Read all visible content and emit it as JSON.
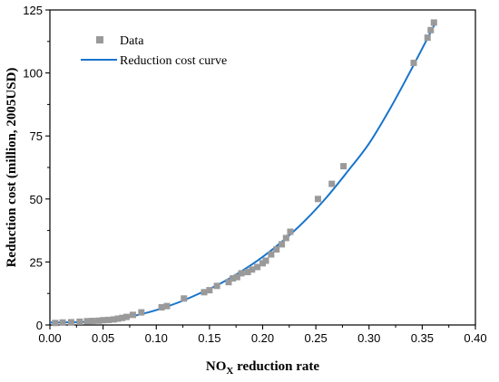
{
  "chart_data": {
    "type": "scatter",
    "title": "",
    "xlabel_main": "NO",
    "xlabel_sub": "X",
    "xlabel_rest": " reduction rate",
    "ylabel": "Reduction cost (million, 2005USD)",
    "xlim": [
      0.0,
      0.4
    ],
    "ylim": [
      0,
      125
    ],
    "xticks": [
      0.0,
      0.05,
      0.1,
      0.15,
      0.2,
      0.25,
      0.3,
      0.35,
      0.4
    ],
    "xtick_labels": [
      "0.00",
      "0.05",
      "0.10",
      "0.15",
      "0.20",
      "0.25",
      "0.30",
      "0.35",
      "0.40"
    ],
    "yticks": [
      0,
      25,
      50,
      75,
      100,
      125
    ],
    "ytick_labels": [
      "0",
      "25",
      "50",
      "75",
      "100",
      "125"
    ],
    "grid": false,
    "legend_position": "top-left",
    "colors": {
      "data": "#9a9a9a",
      "curve": "#1874cd"
    },
    "series": [
      {
        "name": "Data",
        "kind": "scatter",
        "x": [
          0.005,
          0.012,
          0.02,
          0.028,
          0.035,
          0.04,
          0.046,
          0.05,
          0.055,
          0.06,
          0.064,
          0.068,
          0.072,
          0.078,
          0.086,
          0.105,
          0.11,
          0.126,
          0.145,
          0.15,
          0.157,
          0.168,
          0.172,
          0.176,
          0.18,
          0.186,
          0.19,
          0.195,
          0.2,
          0.203,
          0.208,
          0.213,
          0.218,
          0.222,
          0.226,
          0.252,
          0.265,
          0.276,
          0.342,
          0.355,
          0.358,
          0.361
        ],
        "y": [
          0.8,
          1.0,
          1.1,
          1.3,
          1.5,
          1.6,
          1.7,
          1.9,
          2.0,
          2.2,
          2.5,
          2.8,
          3.2,
          4.0,
          5.0,
          7.0,
          7.5,
          10.5,
          13.0,
          13.8,
          15.5,
          17.0,
          18.5,
          19.0,
          20.5,
          21.0,
          22.0,
          23.0,
          24.5,
          25.5,
          28.0,
          30.0,
          32.0,
          34.5,
          37.0,
          50.0,
          56.0,
          63.0,
          104.0,
          114.0,
          117.0,
          120.0
        ]
      },
      {
        "name": "Reduction cost curve",
        "kind": "line",
        "x": [
          0.0,
          0.02,
          0.04,
          0.06,
          0.08,
          0.1,
          0.12,
          0.14,
          0.16,
          0.18,
          0.2,
          0.22,
          0.24,
          0.26,
          0.28,
          0.3,
          0.32,
          0.34,
          0.36,
          0.362
        ],
        "y": [
          1.0,
          1.1,
          1.3,
          2.0,
          3.7,
          5.9,
          8.8,
          12.4,
          16.4,
          21.3,
          27.0,
          33.7,
          41.5,
          50.6,
          61.0,
          72.0,
          86.0,
          101.6,
          117.9,
          119.7
        ]
      }
    ]
  }
}
